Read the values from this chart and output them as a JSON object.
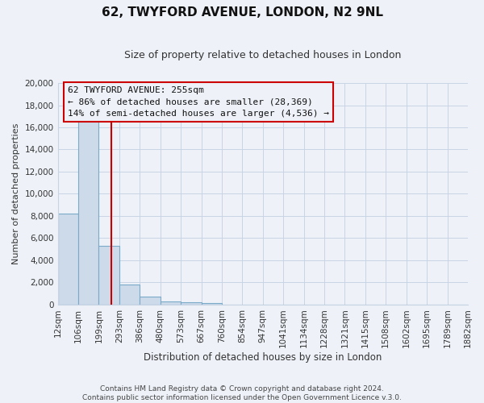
{
  "title": "62, TWYFORD AVENUE, LONDON, N2 9NL",
  "subtitle": "Size of property relative to detached houses in London",
  "xlabel": "Distribution of detached houses by size in London",
  "ylabel": "Number of detached properties",
  "bar_values": [
    8200,
    16600,
    5300,
    1800,
    700,
    300,
    200,
    150,
    0,
    0,
    0,
    0,
    0,
    0,
    0,
    0,
    0,
    0,
    0,
    0
  ],
  "bin_labels": [
    "12sqm",
    "106sqm",
    "199sqm",
    "293sqm",
    "386sqm",
    "480sqm",
    "573sqm",
    "667sqm",
    "760sqm",
    "854sqm",
    "947sqm",
    "1041sqm",
    "1134sqm",
    "1228sqm",
    "1321sqm",
    "1415sqm",
    "1508sqm",
    "1602sqm",
    "1695sqm",
    "1789sqm",
    "1882sqm"
  ],
  "bar_color": "#ccdaea",
  "bar_edge_color": "#7aaac8",
  "ylim": [
    0,
    20000
  ],
  "yticks": [
    0,
    2000,
    4000,
    6000,
    8000,
    10000,
    12000,
    14000,
    16000,
    18000,
    20000
  ],
  "annotation_title": "62 TWYFORD AVENUE: 255sqm",
  "annotation_line1": "← 86% of detached houses are smaller (28,369)",
  "annotation_line2": "14% of semi-detached houses are larger (4,536) →",
  "footer1": "Contains HM Land Registry data © Crown copyright and database right 2024.",
  "footer2": "Contains public sector information licensed under the Open Government Licence v.3.0.",
  "background_color": "#eef2f8",
  "grid_color": "#c8d4e4",
  "red_line_color": "#cc0000",
  "title_fontsize": 11,
  "subtitle_fontsize": 9,
  "ylabel_fontsize": 8,
  "xlabel_fontsize": 8.5,
  "tick_fontsize": 7.5,
  "annotation_fontsize": 8,
  "footer_fontsize": 6.5
}
